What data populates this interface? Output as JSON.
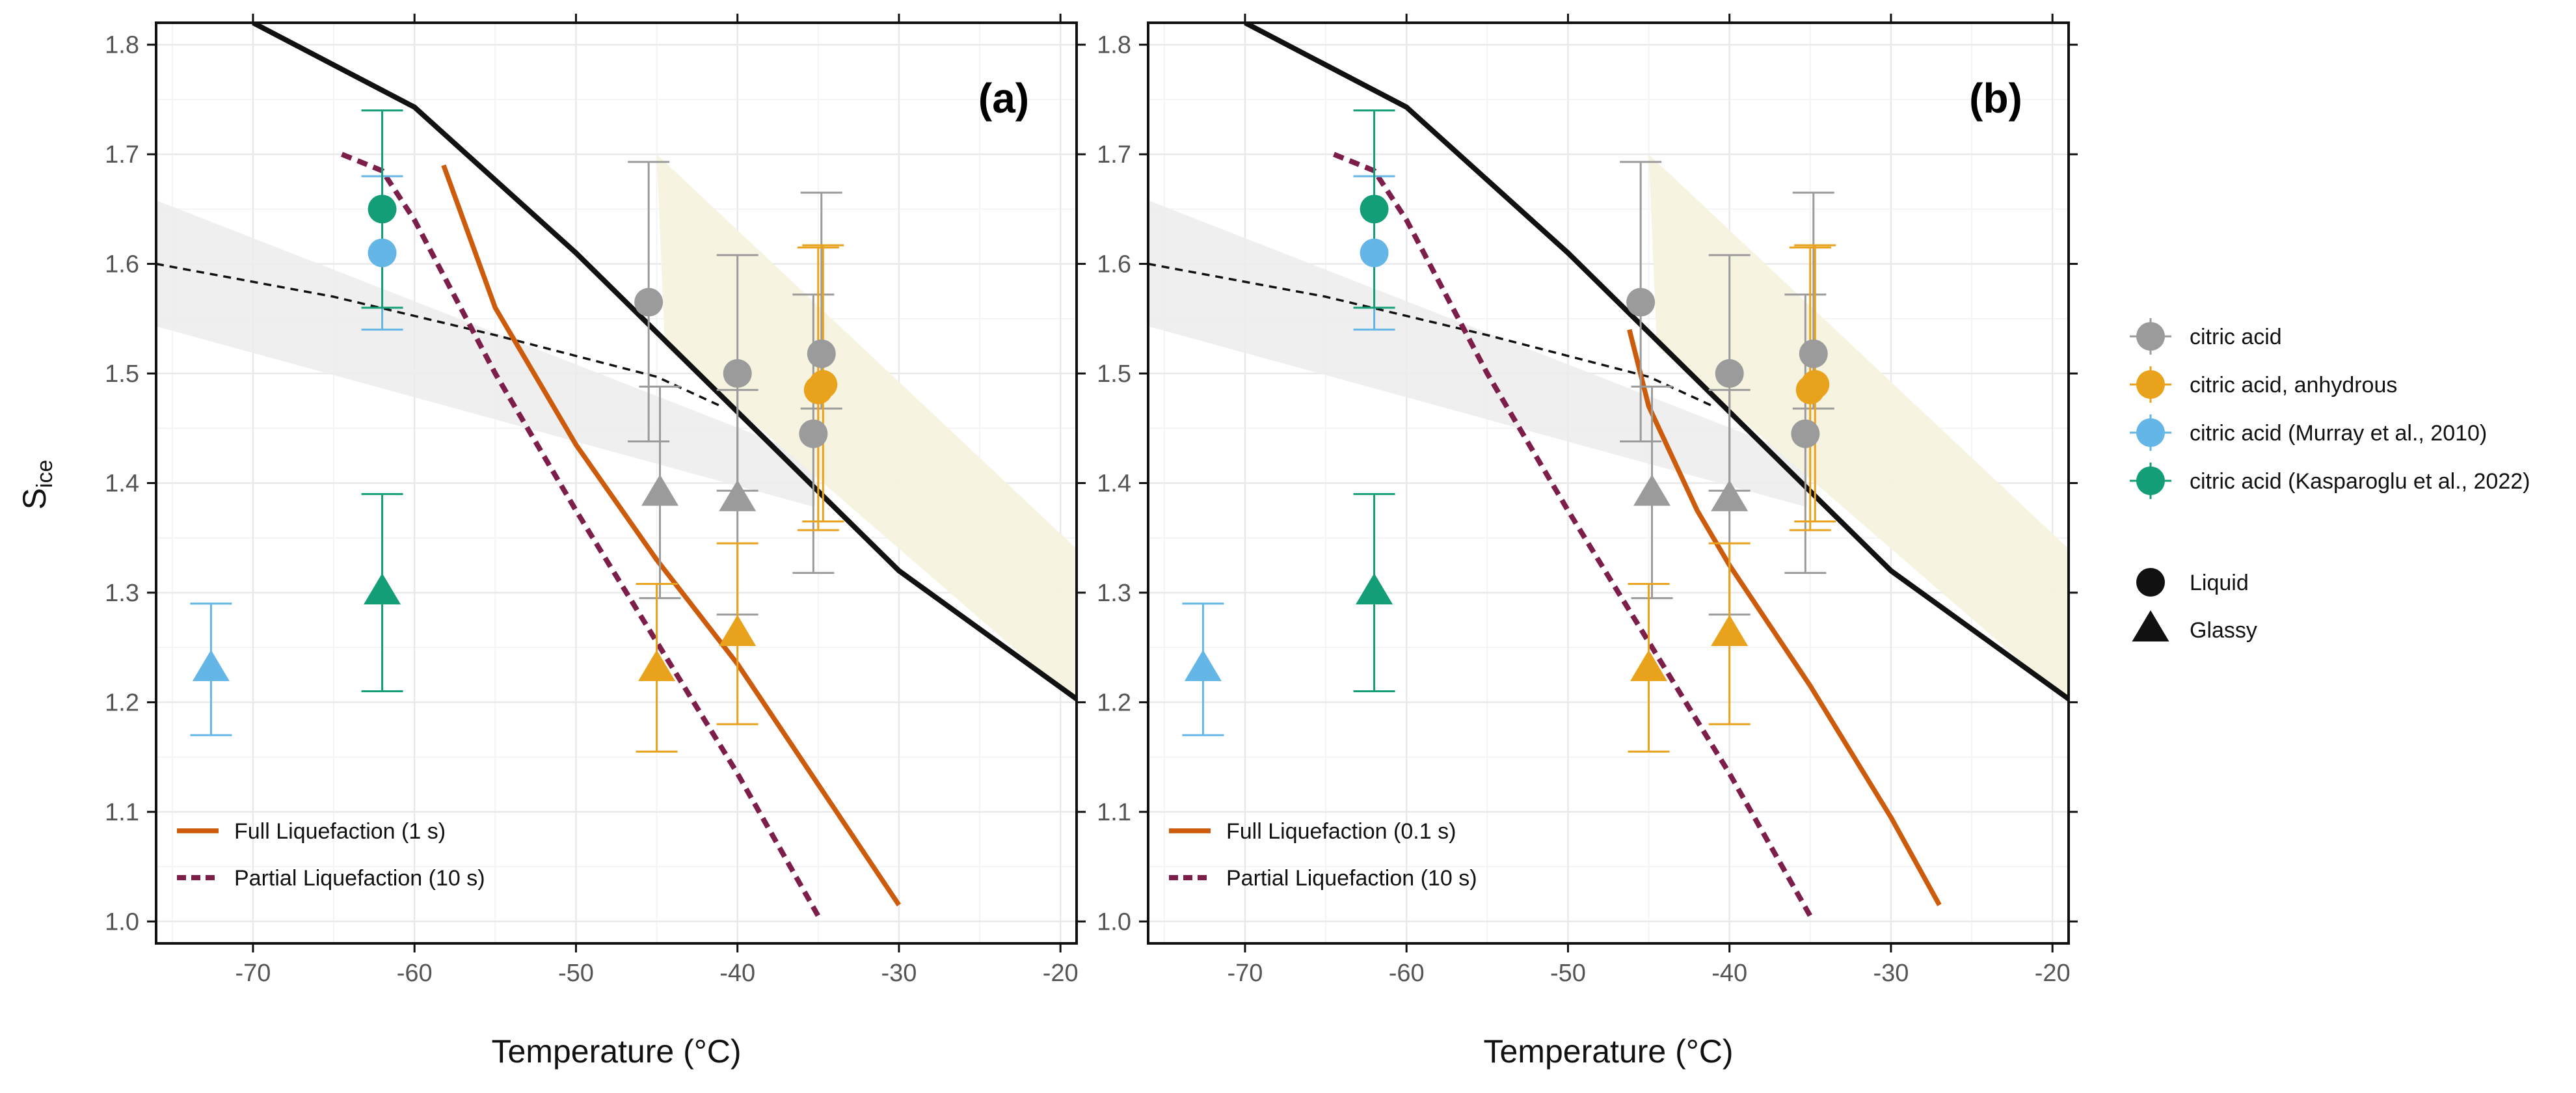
{
  "chart_data": {
    "type": "scatter",
    "xlabel": "Temperature (°C)",
    "ylabel": "S",
    "ylabel_subscript": "ice",
    "xlim": [
      -76,
      -19
    ],
    "ylim": [
      0.98,
      1.82
    ],
    "x_ticks": [
      -70,
      -60,
      -50,
      -40,
      -30,
      -20
    ],
    "x_tick_labels": [
      "-70",
      "-60",
      "-50",
      "-40",
      "-30",
      "-20"
    ],
    "y_ticks": [
      1.0,
      1.1,
      1.2,
      1.3,
      1.4,
      1.5,
      1.6,
      1.7,
      1.8
    ],
    "y_tick_labels": [
      "1.0",
      "1.1",
      "1.2",
      "1.3",
      "1.4",
      "1.5",
      "1.6",
      "1.7",
      "1.8"
    ],
    "grid": true,
    "colors": {
      "citric_acid": "#9b9b9b",
      "anhydrous": "#e8a21c",
      "murray": "#63b6e6",
      "kasparoglu": "#149e78",
      "full_liquefaction": "#cc5c0c",
      "partial_liquefaction": "#7d1d4a",
      "black_line": "#111111",
      "grey_band": "#ececec",
      "yellow_band": "#f7f2df"
    },
    "series": [
      {
        "name": "citric acid",
        "color_key": "citric_acid",
        "points": [
          {
            "x": -45.5,
            "y": 1.565,
            "lo": 1.438,
            "hi": 1.693,
            "shape": "liquid"
          },
          {
            "x": -40.0,
            "y": 1.5,
            "lo": 1.393,
            "hi": 1.608,
            "shape": "liquid"
          },
          {
            "x": -34.8,
            "y": 1.518,
            "lo": 1.468,
            "hi": 1.665,
            "shape": "liquid"
          },
          {
            "x": -35.3,
            "y": 1.445,
            "lo": 1.318,
            "hi": 1.572,
            "shape": "liquid"
          },
          {
            "x": -44.8,
            "y": 1.39,
            "lo": 1.295,
            "hi": 1.488,
            "shape": "glassy"
          },
          {
            "x": -40.0,
            "y": 1.385,
            "lo": 1.28,
            "hi": 1.485,
            "shape": "glassy"
          }
        ]
      },
      {
        "name": "citric acid, anhydrous",
        "color_key": "anhydrous",
        "points": [
          {
            "x": -34.7,
            "y": 1.49,
            "lo": 1.365,
            "hi": 1.617,
            "shape": "liquid"
          },
          {
            "x": -35.0,
            "y": 1.485,
            "lo": 1.357,
            "hi": 1.615,
            "shape": "liquid"
          },
          {
            "x": -45.0,
            "y": 1.23,
            "lo": 1.155,
            "hi": 1.308,
            "shape": "glassy"
          },
          {
            "x": -40.0,
            "y": 1.262,
            "lo": 1.18,
            "hi": 1.345,
            "shape": "glassy"
          }
        ]
      },
      {
        "name": "citric acid (Murray et al., 2010)",
        "color_key": "murray",
        "points": [
          {
            "x": -62.0,
            "y": 1.61,
            "lo": 1.54,
            "hi": 1.68,
            "shape": "liquid"
          },
          {
            "x": -72.6,
            "y": 1.23,
            "lo": 1.17,
            "hi": 1.29,
            "shape": "glassy"
          }
        ]
      },
      {
        "name": "citric acid (Kasparoglu et al., 2022)",
        "color_key": "kasparoglu",
        "points": [
          {
            "x": -62.0,
            "y": 1.65,
            "lo": 1.56,
            "hi": 1.74,
            "shape": "liquid"
          },
          {
            "x": -62.0,
            "y": 1.3,
            "lo": 1.21,
            "hi": 1.39,
            "shape": "glassy"
          }
        ]
      }
    ],
    "panels": [
      {
        "label": "(a)",
        "full_liquefaction": {
          "name": "Full Liquefaction (1 s)",
          "points": [
            [
              -58.2,
              1.69
            ],
            [
              -55,
              1.56
            ],
            [
              -50,
              1.435
            ],
            [
              -45,
              1.33
            ],
            [
              -40,
              1.235
            ],
            [
              -35,
              1.125
            ],
            [
              -30,
              1.015
            ]
          ]
        },
        "partial_liquefaction": {
          "name": "Partial Liquefaction (10 s)",
          "points": [
            [
              -64.5,
              1.7
            ],
            [
              -62,
              1.685
            ],
            [
              -60,
              1.64
            ],
            [
              -55,
              1.5
            ],
            [
              -50,
              1.375
            ],
            [
              -45,
              1.255
            ],
            [
              -40,
              1.135
            ],
            [
              -35,
              1.005
            ]
          ]
        }
      },
      {
        "label": "(b)",
        "full_liquefaction": {
          "name": "Full Liquefaction (0.1 s)",
          "points": [
            [
              -46.2,
              1.54
            ],
            [
              -45,
              1.47
            ],
            [
              -42,
              1.375
            ],
            [
              -40,
              1.325
            ],
            [
              -35,
              1.215
            ],
            [
              -30,
              1.095
            ],
            [
              -27,
              1.015
            ]
          ]
        },
        "partial_liquefaction": {
          "name": "Partial Liquefaction (10 s)",
          "points": [
            [
              -64.5,
              1.7
            ],
            [
              -62,
              1.685
            ],
            [
              -60,
              1.64
            ],
            [
              -55,
              1.5
            ],
            [
              -50,
              1.375
            ],
            [
              -45,
              1.255
            ],
            [
              -40,
              1.135
            ],
            [
              -35,
              1.005
            ]
          ]
        }
      }
    ],
    "black_line": [
      [
        -70,
        1.82
      ],
      [
        -60,
        1.743
      ],
      [
        -50,
        1.61
      ],
      [
        -40,
        1.465
      ],
      [
        -30,
        1.32
      ],
      [
        -19,
        1.203
      ]
    ],
    "dashed_line": [
      [
        -76,
        1.6
      ],
      [
        -65,
        1.57
      ],
      [
        -55,
        1.535
      ],
      [
        -45,
        1.497
      ],
      [
        -41,
        1.47
      ]
    ],
    "grey_band": {
      "x": [
        -76,
        -35.2
      ],
      "upper": [
        1.658,
        1.423
      ],
      "lower": [
        1.543,
        1.378
      ]
    },
    "yellow_band": {
      "upper": [
        [
          -45,
          1.7
        ],
        [
          -19,
          1.34
        ]
      ],
      "lower": [
        [
          -44.5,
          1.525
        ],
        [
          -19,
          1.2
        ]
      ]
    },
    "legend_markers": {
      "liquid": "Liquid",
      "glassy": "Glassy"
    }
  }
}
